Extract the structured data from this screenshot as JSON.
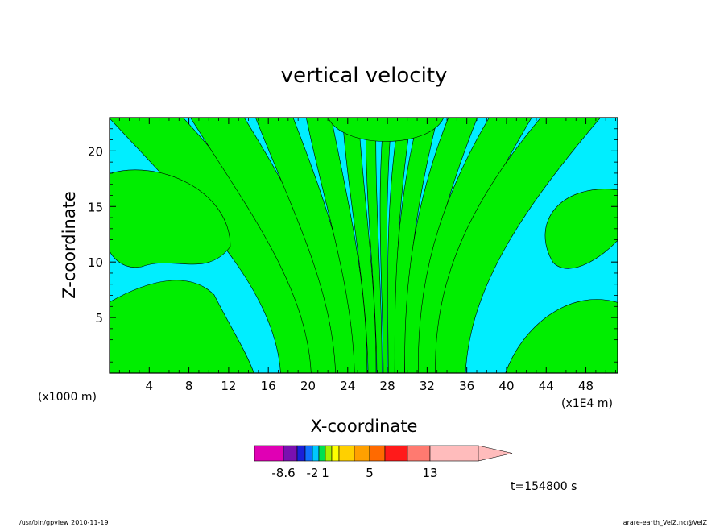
{
  "chart_data": {
    "type": "heatmap",
    "title": "vertical velocity",
    "xlabel": "X-coordinate",
    "ylabel": "Z-coordinate",
    "x_unit_left": "(x1000 m)",
    "x_unit_right": "(x1E4 m)",
    "xlim": [
      0,
      51.2
    ],
    "ylim": [
      0,
      23
    ],
    "x_ticks": [
      "4",
      "8",
      "12",
      "16",
      "20",
      "24",
      "28",
      "32",
      "36",
      "40",
      "44",
      "48"
    ],
    "y_ticks": [
      "5",
      "10",
      "15",
      "20"
    ],
    "x_tick_values": [
      4,
      8,
      12,
      16,
      20,
      24,
      28,
      32,
      36,
      40,
      44,
      48
    ],
    "y_tick_values": [
      5,
      10,
      15,
      20
    ],
    "field_colors": {
      "negative": "#00eeff",
      "positive": "#00ee00"
    },
    "colorbar": {
      "labels": [
        "-8.6",
        "-2",
        "1",
        "5",
        "13"
      ],
      "colors": [
        "#e000b4",
        "#7a10b0",
        "#1a20d8",
        "#1070ff",
        "#00c8ff",
        "#00e050",
        "#a8f000",
        "#ffff00",
        "#ffd000",
        "#ffa000",
        "#ff6a00",
        "#ff1a1a",
        "#ff7a70",
        "#ffbcbc"
      ]
    },
    "time_label": "t=154800 s",
    "footer_left": "/usr/bin/gpview  2010-11-19",
    "footer_right": "arare-earth_VelZ.nc@VelZ"
  }
}
